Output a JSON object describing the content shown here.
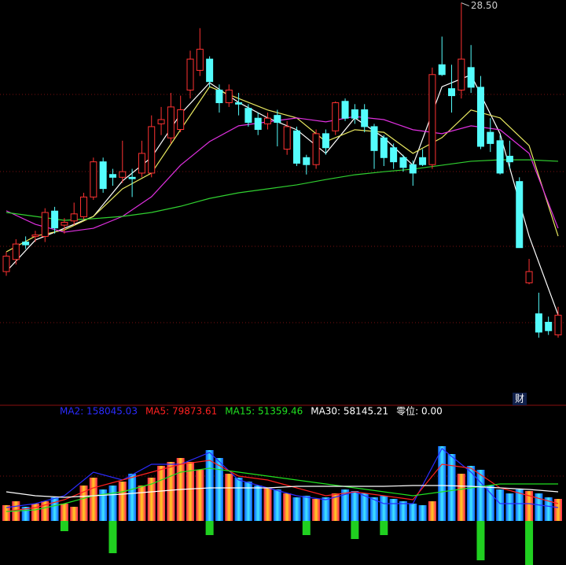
{
  "chart_data": {
    "type": "candlestick",
    "x": [
      0,
      1,
      2,
      3,
      4,
      5,
      6,
      7,
      8,
      9,
      10,
      11,
      12,
      13,
      14,
      15,
      16,
      17,
      18,
      19,
      20,
      21,
      22,
      23,
      24,
      25,
      26,
      27,
      28,
      29,
      30,
      31,
      32,
      33,
      34,
      35,
      36,
      37,
      38,
      39,
      40,
      41,
      42,
      43,
      44,
      45,
      46,
      47,
      48,
      49,
      50,
      51,
      52,
      53,
      54,
      55,
      56,
      57
    ],
    "open": [
      18.95,
      19.38,
      20.0,
      20.2,
      20.2,
      21.1,
      20.6,
      20.75,
      20.9,
      21.6,
      22.85,
      22.4,
      22.3,
      22.3,
      22.45,
      22.45,
      24.2,
      23.7,
      24.0,
      25.4,
      26.1,
      26.5,
      25.4,
      24.95,
      24.95,
      24.75,
      24.4,
      24.2,
      24.5,
      23.3,
      23.95,
      23.0,
      22.75,
      23.85,
      23.95,
      25.0,
      24.7,
      24.7,
      24.1,
      23.7,
      23.35,
      23.0,
      22.75,
      23.0,
      22.75,
      26.3,
      25.45,
      25.4,
      26.2,
      25.5,
      23.9,
      23.6,
      23.05,
      22.15,
      18.55,
      17.45,
      17.15,
      16.7
    ],
    "high": [
      19.65,
      20.1,
      20.2,
      20.4,
      21.2,
      21.25,
      20.85,
      21.4,
      21.75,
      23.0,
      23.0,
      22.6,
      23.6,
      22.6,
      23.6,
      24.5,
      24.8,
      25.3,
      25.2,
      26.8,
      27.6,
      26.6,
      25.6,
      25.6,
      25.3,
      24.9,
      24.6,
      24.6,
      24.7,
      24.3,
      24.1,
      23.1,
      24.0,
      24.0,
      25.0,
      25.1,
      24.9,
      24.9,
      24.2,
      23.8,
      23.5,
      23.1,
      22.9,
      23.3,
      26.2,
      27.3,
      26.3,
      28.5,
      27.0,
      25.9,
      24.4,
      23.8,
      23.6,
      22.3,
      19.4,
      18.2,
      17.35,
      17.7
    ],
    "low": [
      18.8,
      19.2,
      19.75,
      20.0,
      20.0,
      20.3,
      20.3,
      20.6,
      20.8,
      21.5,
      21.75,
      22.0,
      22.1,
      21.6,
      22.3,
      22.3,
      23.8,
      23.5,
      23.9,
      25.1,
      25.9,
      25.5,
      24.6,
      24.8,
      24.5,
      24.1,
      23.8,
      24.0,
      23.4,
      23.1,
      22.7,
      22.4,
      22.6,
      23.1,
      23.8,
      24.3,
      24.2,
      23.9,
      22.6,
      22.7,
      22.6,
      22.5,
      22.0,
      22.7,
      22.6,
      25.9,
      24.6,
      25.1,
      25.3,
      23.3,
      23.2,
      22.4,
      22.6,
      19.8,
      18.5,
      16.6,
      16.7,
      16.6
    ],
    "close": [
      19.5,
      19.93,
      19.9,
      20.25,
      21.05,
      20.5,
      20.7,
      21.0,
      21.6,
      22.85,
      21.9,
      22.3,
      22.5,
      22.25,
      23.15,
      24.1,
      24.35,
      24.8,
      24.7,
      26.5,
      26.85,
      25.7,
      24.95,
      25.4,
      24.9,
      24.25,
      24.0,
      24.4,
      24.25,
      24.1,
      22.8,
      22.75,
      23.85,
      23.35,
      24.95,
      24.4,
      24.4,
      24.1,
      23.25,
      23.0,
      22.85,
      22.65,
      22.45,
      22.75,
      25.95,
      25.95,
      25.2,
      26.5,
      25.5,
      23.4,
      23.5,
      22.45,
      22.85,
      19.8,
      18.95,
      16.8,
      16.85,
      17.4
    ],
    "ylim": [
      14.2,
      28.6
    ],
    "up_color": "#ff3232",
    "down_color": "#54fcfc",
    "high_label": {
      "value": 28.5,
      "label": "28.50",
      "index": 47
    },
    "price_lines": {
      "x": [
        0,
        3,
        6,
        9,
        12,
        15,
        18,
        21,
        24,
        27,
        30,
        33,
        36,
        39,
        42,
        45,
        48,
        51,
        54,
        57
      ],
      "series": [
        {
          "color": "#ffffff",
          "values": [
            18.95,
            20.07,
            20.49,
            20.91,
            22.17,
            23.01,
            24.55,
            25.66,
            24.96,
            24.41,
            23.99,
            23.15,
            24.41,
            23.71,
            22.73,
            25.52,
            25.94,
            23.85,
            20.21,
            17.41
          ]
        },
        {
          "color": "#e8e860",
          "values": [
            19.65,
            20.21,
            20.43,
            20.91,
            21.89,
            22.45,
            23.99,
            25.52,
            25.1,
            24.69,
            24.41,
            23.57,
            23.99,
            23.9,
            23.15,
            23.71,
            24.69,
            24.41,
            23.43,
            20.21
          ]
        },
        {
          "color": "#e030e0",
          "values": [
            21.11,
            20.63,
            20.35,
            20.49,
            20.91,
            21.61,
            22.73,
            23.57,
            24.13,
            24.27,
            24.41,
            24.27,
            24.46,
            24.35,
            23.99,
            23.85,
            24.13,
            23.99,
            23.15,
            20.49
          ]
        },
        {
          "color": "#30d030",
          "values": [
            21.05,
            20.91,
            20.77,
            20.83,
            20.91,
            21.05,
            21.27,
            21.55,
            21.75,
            21.89,
            22.03,
            22.22,
            22.39,
            22.5,
            22.59,
            22.73,
            22.87,
            22.92,
            22.92,
            22.87
          ]
        }
      ]
    },
    "volume": [
      40000,
      50000,
      36000,
      44000,
      50000,
      60000,
      44000,
      36000,
      90000,
      110000,
      80000,
      90000,
      100000,
      120000,
      90000,
      110000,
      140000,
      150000,
      160000,
      150000,
      130000,
      180000,
      160000,
      120000,
      110000,
      100000,
      90000,
      84000,
      80000,
      70000,
      60000,
      64000,
      56000,
      60000,
      70000,
      80000,
      76000,
      70000,
      60000,
      64000,
      56000,
      50000,
      44000,
      40000,
      50000,
      190000,
      170000,
      120000,
      140000,
      130000,
      90000,
      80000,
      70000,
      80000,
      76000,
      70000,
      60000,
      56000
    ],
    "negative": [
      null,
      null,
      null,
      null,
      null,
      null,
      -26000,
      null,
      null,
      null,
      null,
      -82000,
      null,
      null,
      null,
      null,
      null,
      null,
      null,
      null,
      null,
      -36000,
      null,
      null,
      null,
      null,
      null,
      null,
      null,
      null,
      null,
      -36000,
      null,
      null,
      null,
      null,
      -46000,
      null,
      null,
      -36000,
      null,
      null,
      null,
      null,
      null,
      null,
      null,
      null,
      null,
      -100000,
      null,
      null,
      null,
      null,
      -112000,
      null,
      null,
      null
    ],
    "negative_color": "#20d020",
    "vol_ylim": [
      -112000,
      264000
    ],
    "vol_lines": {
      "x": [
        0,
        3,
        6,
        9,
        12,
        15,
        18,
        21,
        24,
        27,
        30,
        33,
        36,
        39,
        42,
        45,
        48,
        51,
        54,
        57
      ],
      "series": [
        {
          "color": "#2b2bff",
          "values": [
            34000,
            44000,
            64000,
            124000,
            104000,
            144000,
            144000,
            174000,
            104000,
            84000,
            64000,
            54000,
            74000,
            44000,
            44000,
            184000,
            124000,
            44000,
            44000,
            34000
          ]
        },
        {
          "color": "#ff2020",
          "values": [
            24000,
            34000,
            54000,
            84000,
            104000,
            124000,
            144000,
            154000,
            114000,
            104000,
            84000,
            64000,
            74000,
            64000,
            54000,
            144000,
            134000,
            84000,
            64000,
            44000
          ]
        },
        {
          "color": "#20e020",
          "values": [
            24000,
            28000,
            44000,
            64000,
            74000,
            94000,
            124000,
            134000,
            124000,
            114000,
            104000,
            94000,
            84000,
            74000,
            64000,
            74000,
            84000,
            94000,
            94000,
            94000
          ]
        },
        {
          "color": "#ffffff",
          "values": [
            74000,
            64000,
            60000,
            64000,
            68000,
            74000,
            80000,
            84000,
            84000,
            84000,
            88000,
            88000,
            88000,
            88000,
            90000,
            90000,
            88000,
            84000,
            80000,
            74000
          ]
        }
      ]
    },
    "legend": [
      {
        "text": "MA2: 158045.03",
        "color": "#2b2bff"
      },
      {
        "text": "MA5: 79873.61",
        "color": "#ff2020"
      },
      {
        "text": "MA15: 51359.46",
        "color": "#20e020"
      },
      {
        "text": "MA30: 58145.21",
        "color": "#ffffff"
      },
      {
        "text": "零位: 0.00",
        "color": "#ffffff"
      }
    ],
    "badge": "财"
  }
}
